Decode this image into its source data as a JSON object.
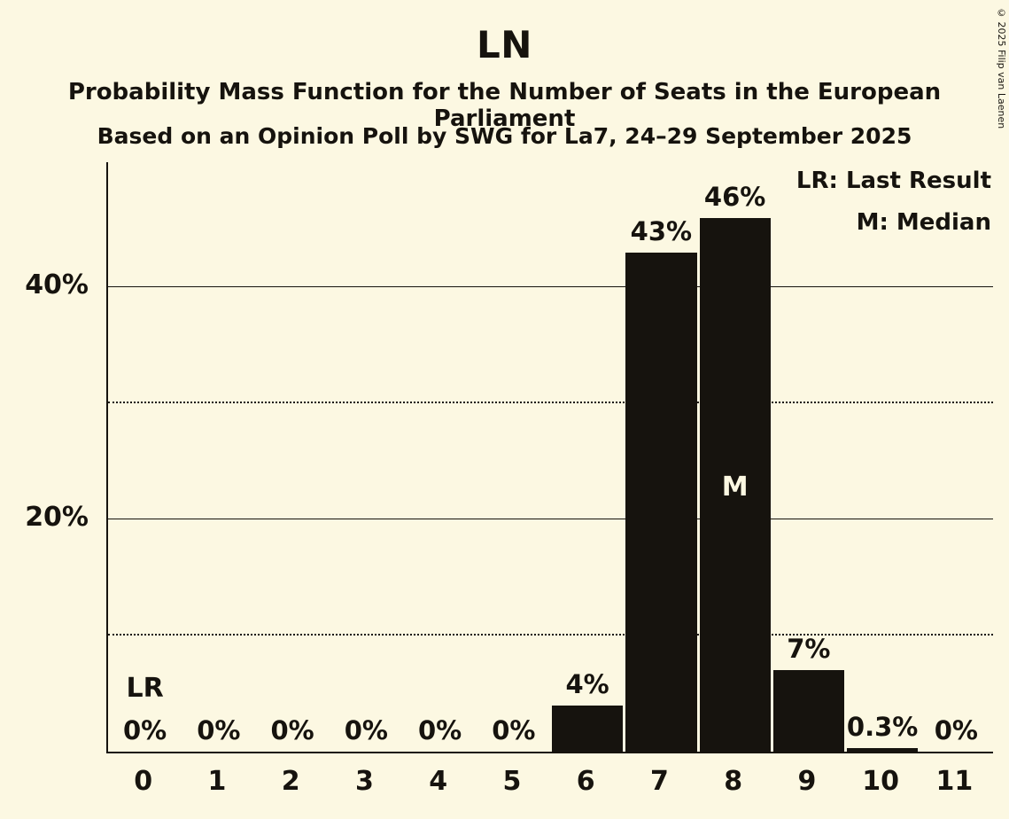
{
  "header": {
    "title": "LN",
    "subtitle1": "Probability Mass Function for the Number of Seats in the European Parliament",
    "subtitle2": "Based on an Opinion Poll by SWG for La7, 24–29 September 2025"
  },
  "legend": {
    "lr": "LR: Last Result",
    "m": "M: Median"
  },
  "copyright": "© 2025 Filip van Laenen",
  "chart_data": {
    "type": "bar",
    "title": "LN",
    "categories": [
      "0",
      "1",
      "2",
      "3",
      "4",
      "5",
      "6",
      "7",
      "8",
      "9",
      "10",
      "11"
    ],
    "values": [
      0,
      0,
      0,
      0,
      0,
      0,
      4,
      43,
      46,
      7,
      0.3,
      0
    ],
    "value_labels": [
      "0%",
      "0%",
      "0%",
      "0%",
      "0%",
      "0%",
      "4%",
      "43%",
      "46%",
      "7%",
      "0.3%",
      "0%"
    ],
    "xlabel": "",
    "ylabel": "",
    "ylim": [
      0,
      50.8
    ],
    "yticks": [
      {
        "value": 10,
        "style": "dotted"
      },
      {
        "value": 20,
        "label": "20%",
        "style": "solid"
      },
      {
        "value": 30,
        "style": "dotted"
      },
      {
        "value": 40,
        "label": "40%",
        "style": "solid"
      }
    ],
    "annotations": [
      {
        "text": "LR",
        "category": "0",
        "inside": false
      },
      {
        "text": "M",
        "category": "8",
        "inside": true
      }
    ],
    "bar_color": "#16130e",
    "background": "#fcf8e2",
    "legend_position": "top-right",
    "grid": true
  }
}
